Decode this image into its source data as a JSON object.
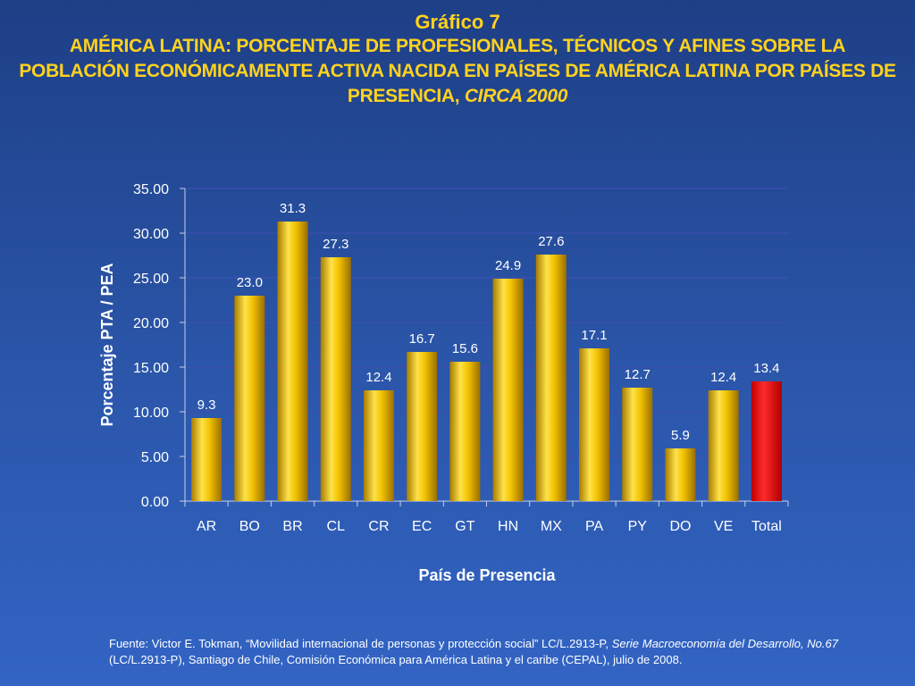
{
  "title": {
    "top": "Gráfico 7",
    "main": "AMÉRICA LATINA: PORCENTAJE DE PROFESIONALES, TÉCNICOS Y AFINES  SOBRE LA POBLACIÓN ECONÓMICAMENTE ACTIVA NACIDA EN PAÍSES DE AMÉRICA LATINA POR PAÍSES DE PRESENCIA,",
    "main_italic": "CIRCA 2000"
  },
  "source": {
    "part1": "Fuente: Victor E. Tokman, “Movilidad internacional de personas y protección social” LC/L.2913-P,",
    "italic1": "Serie Macroeconomía del Desarrollo, No.67",
    "part2": "(LC/L.2913-P), Santiago de Chile, Comisión Económica para América Latina y el caribe (CEPAL), julio de 2008."
  },
  "colors": {
    "bar": "#f2c200",
    "bar_highlight": "#ff2020",
    "title": "#ffd21f",
    "text": "#ffffff",
    "gridline": "#3d4fb0"
  },
  "chart_data": {
    "type": "bar",
    "xlabel": "País de Presencia",
    "ylabel": "Porcentaje PTA / PEA",
    "ylim": [
      0,
      35
    ],
    "yticks": [
      "0.00",
      "5.00",
      "10.00",
      "15.00",
      "20.00",
      "25.00",
      "30.00",
      "35.00"
    ],
    "grid": true,
    "categories": [
      "AR",
      "BO",
      "BR",
      "CL",
      "CR",
      "EC",
      "GT",
      "HN",
      "MX",
      "PA",
      "PY",
      "DO",
      "VE",
      "Total"
    ],
    "values": [
      9.3,
      23.0,
      31.3,
      27.3,
      12.4,
      16.7,
      15.6,
      24.9,
      27.6,
      17.1,
      12.7,
      5.9,
      12.4,
      13.4
    ],
    "value_labels": [
      "9.3",
      "23.0",
      "31.3",
      "27.3",
      "12.4",
      "16.7",
      "15.6",
      "24.9",
      "27.6",
      "17.1",
      "12.7",
      "5.9",
      "12.4",
      "13.4"
    ],
    "highlight_category": "Total"
  }
}
